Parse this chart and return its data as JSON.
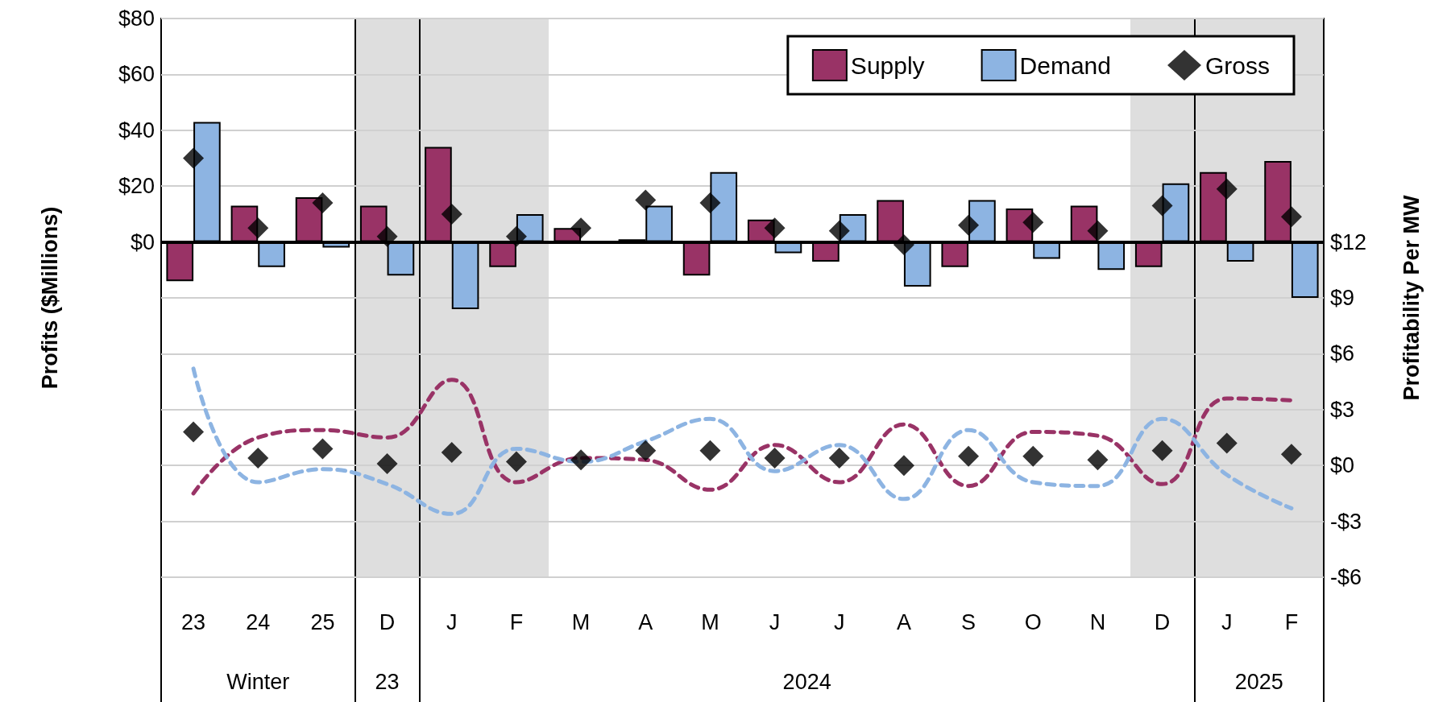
{
  "chart_data": {
    "type": "bar",
    "ylabel": "Profits ($Millions)",
    "y2label": "Profitability Per MW",
    "categories": [
      "23",
      "24",
      "25",
      "D",
      "J",
      "F",
      "M",
      "A",
      "M",
      "J",
      "J",
      "A",
      "S",
      "O",
      "N",
      "D",
      "J",
      "F"
    ],
    "ylim": [
      -120,
      80
    ],
    "yticks": [
      {
        "value": 0,
        "label": "$0"
      },
      {
        "value": 20,
        "label": "$20"
      },
      {
        "value": 40,
        "label": "$40"
      },
      {
        "value": 60,
        "label": "$60"
      },
      {
        "value": 80,
        "label": "$80"
      }
    ],
    "y2lim": [
      -6,
      24
    ],
    "y2ticks": [
      {
        "value": -6,
        "label": "-$6"
      },
      {
        "value": -3,
        "label": "-$3"
      },
      {
        "value": 0,
        "label": "$0"
      },
      {
        "value": 3,
        "label": "$3"
      },
      {
        "value": 6,
        "label": "$6"
      },
      {
        "value": 9,
        "label": "$9"
      },
      {
        "value": 12,
        "label": "$12"
      }
    ],
    "series": [
      {
        "name": "Supply",
        "color": "#993366",
        "values": [
          -14,
          13,
          16,
          13,
          34,
          -9,
          5,
          1,
          -12,
          8,
          -7,
          15,
          -9,
          12,
          13,
          -9,
          25,
          29
        ]
      },
      {
        "name": "Demand",
        "color": "#8db4e2",
        "values": [
          43,
          -9,
          -2,
          -12,
          -24,
          10,
          null,
          13,
          25,
          -4,
          10,
          -16,
          15,
          -6,
          -10,
          21,
          -7,
          -20
        ]
      },
      {
        "name": "Gross",
        "type": "scatter",
        "color": "#000000",
        "marker": "diamond",
        "values": [
          30,
          5,
          14,
          2,
          10,
          2,
          5,
          15,
          14,
          5,
          4,
          -1,
          6,
          7,
          4,
          13,
          19,
          9
        ]
      },
      {
        "type": "line",
        "axis": "y2",
        "color": "#993366",
        "line_style": "dashed",
        "marker": "none",
        "values": [
          -1.5,
          1.5,
          1.9,
          1.5,
          4.6,
          -0.9,
          0.4,
          0.3,
          -1.3,
          1.1,
          -0.9,
          2.2,
          -1.1,
          1.8,
          1.6,
          -1.0,
          3.6,
          3.5
        ]
      },
      {
        "type": "line",
        "axis": "y2",
        "color": "#8db4e2",
        "line_style": "dashed",
        "marker": "none",
        "values": [
          5.2,
          -0.9,
          -0.2,
          -1.0,
          -2.6,
          0.9,
          0.2,
          1.3,
          2.5,
          -0.3,
          1.1,
          -1.8,
          1.9,
          -0.9,
          -1.1,
          2.5,
          -0.5,
          -2.3
        ]
      },
      {
        "type": "scatter",
        "axis": "y2",
        "color": "#000000",
        "marker": "diamond",
        "values": [
          1.8,
          0.4,
          0.9,
          0.1,
          0.7,
          0.2,
          0.3,
          0.8,
          0.8,
          0.4,
          0.4,
          0.0,
          0.5,
          0.5,
          0.3,
          0.8,
          1.2,
          0.6
        ]
      }
    ],
    "grid": true,
    "legend": "top right",
    "ref_lines": [
      {
        "axis": "y",
        "value": 0
      }
    ],
    "annotations": [
      "Winter",
      "23",
      "2024",
      "2025"
    ]
  }
}
